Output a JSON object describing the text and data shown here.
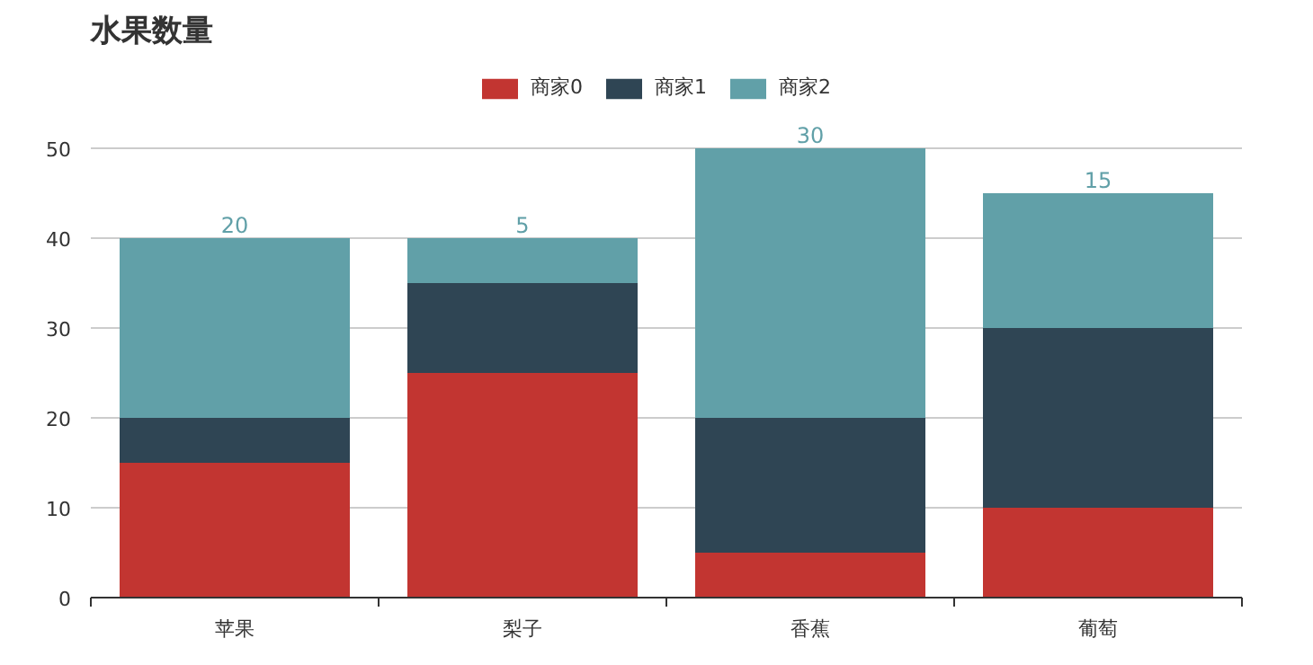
{
  "chart_data": {
    "type": "bar",
    "title": "水果数量",
    "categories": [
      "苹果",
      "梨子",
      "香蕉",
      "葡萄"
    ],
    "stacked": true,
    "series": [
      {
        "name": "商家0",
        "color": "#c23531",
        "values": [
          15,
          25,
          5,
          10
        ]
      },
      {
        "name": "商家1",
        "color": "#2f4554",
        "values": [
          5,
          10,
          15,
          20
        ]
      },
      {
        "name": "商家2",
        "color": "#61a0a8",
        "values": [
          20,
          5,
          30,
          15
        ],
        "value_labels": [
          "20",
          "5",
          "30",
          "15"
        ]
      }
    ],
    "ylim": [
      0,
      50
    ],
    "yticks": [
      0,
      10,
      20,
      30,
      40,
      50
    ],
    "grid": "y",
    "legend": "top"
  }
}
